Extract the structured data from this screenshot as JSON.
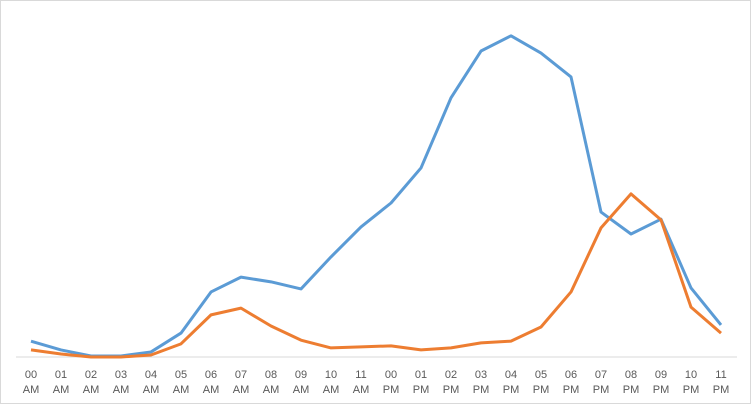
{
  "chart_data": {
    "type": "line",
    "categories": [
      "00 AM",
      "01 AM",
      "02 AM",
      "03 AM",
      "04 AM",
      "05 AM",
      "06 AM",
      "07 AM",
      "08 AM",
      "09 AM",
      "10 AM",
      "11 AM",
      "00 PM",
      "01 PM",
      "02 PM",
      "03 PM",
      "04 PM",
      "05 PM",
      "06 PM",
      "07 PM",
      "08 PM",
      "09 PM",
      "10 PM",
      "11 PM"
    ],
    "series": [
      {
        "color": "#5b9bd5",
        "values": [
          4.7,
          2.1,
          0.3,
          0.3,
          1.5,
          7.1,
          19.3,
          23.7,
          22.3,
          20.2,
          29.7,
          38.6,
          45.7,
          56.1,
          76.9,
          90.8,
          95.3,
          90.2,
          83.1,
          43.0,
          36.5,
          40.9,
          20.5,
          9.5
        ]
      },
      {
        "color": "#ed7d31",
        "values": [
          2.1,
          0.9,
          0,
          0,
          0.6,
          3.9,
          12.5,
          14.5,
          9.2,
          5.0,
          2.7,
          3.0,
          3.3,
          2.1,
          2.7,
          4.2,
          4.7,
          8.9,
          19.3,
          38.3,
          48.4,
          40.7,
          14.8,
          7.1
        ]
      }
    ],
    "ylim": [
      0,
      100
    ],
    "grid": false
  }
}
